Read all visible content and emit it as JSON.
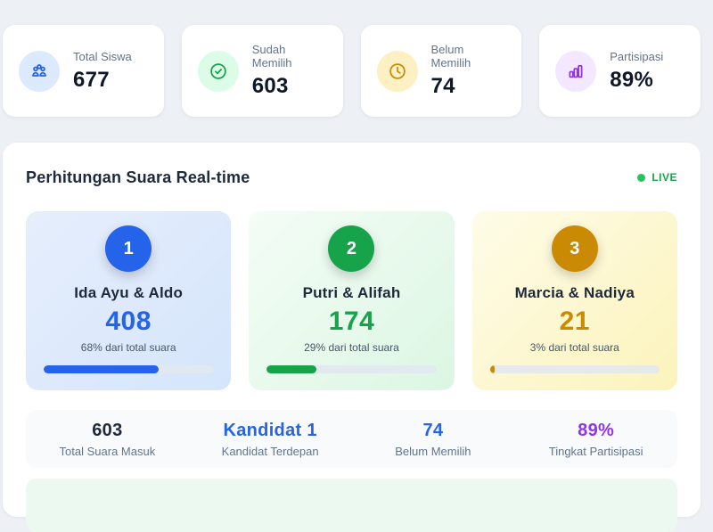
{
  "stat_cards": [
    {
      "label": "Total Siswa",
      "value": "677",
      "icon": "users-icon",
      "icon_color": "#2563eb",
      "icon_bg": "#dbeafe"
    },
    {
      "label": "Sudah Memilih",
      "value": "603",
      "icon": "check-circle-icon",
      "icon_color": "#16a34a",
      "icon_bg": "#dcfce7"
    },
    {
      "label": "Belum Memilih",
      "value": "74",
      "icon": "clock-icon",
      "icon_color": "#ca8a04",
      "icon_bg": "#fdf0c2"
    },
    {
      "label": "Partisipasi",
      "value": "89%",
      "icon": "bar-chart-icon",
      "icon_color": "#9333ea",
      "icon_bg": "#f3e8ff"
    }
  ],
  "panel": {
    "title": "Perhitungan Suara Real-time",
    "live_label": "LIVE",
    "live_dot_color": "#22c55e",
    "live_text_color": "#16a34a"
  },
  "candidates": [
    {
      "rank": "1",
      "name": "Ida Ayu & Aldo",
      "votes": "408",
      "share_text": "68% dari total suara",
      "percent": 68,
      "color": "#2563eb",
      "bg_from": "#e6eefc",
      "bg_to": "#d5e5fb"
    },
    {
      "rank": "2",
      "name": "Putri & Alifah",
      "votes": "174",
      "share_text": "29% dari total suara",
      "percent": 29,
      "color": "#16a34a",
      "bg_from": "#f4fdf6",
      "bg_to": "#dcf6e3"
    },
    {
      "rank": "3",
      "name": "Marcia & Nadiya",
      "votes": "21",
      "share_text": "3% dari total suara",
      "percent": 3,
      "color": "#ca8a04",
      "bg_from": "#fefce8",
      "bg_to": "#fcf3bb"
    }
  ],
  "summary": [
    {
      "value": "603",
      "label": "Total Suara Masuk",
      "color": "#1e293b"
    },
    {
      "value": "Kandidat 1",
      "label": "Kandidat Terdepan",
      "color": "#2563eb"
    },
    {
      "value": "74",
      "label": "Belum Memilih",
      "color": "#2563eb"
    },
    {
      "value": "89%",
      "label": "Tingkat Partisipasi",
      "color": "#9333ea"
    }
  ]
}
